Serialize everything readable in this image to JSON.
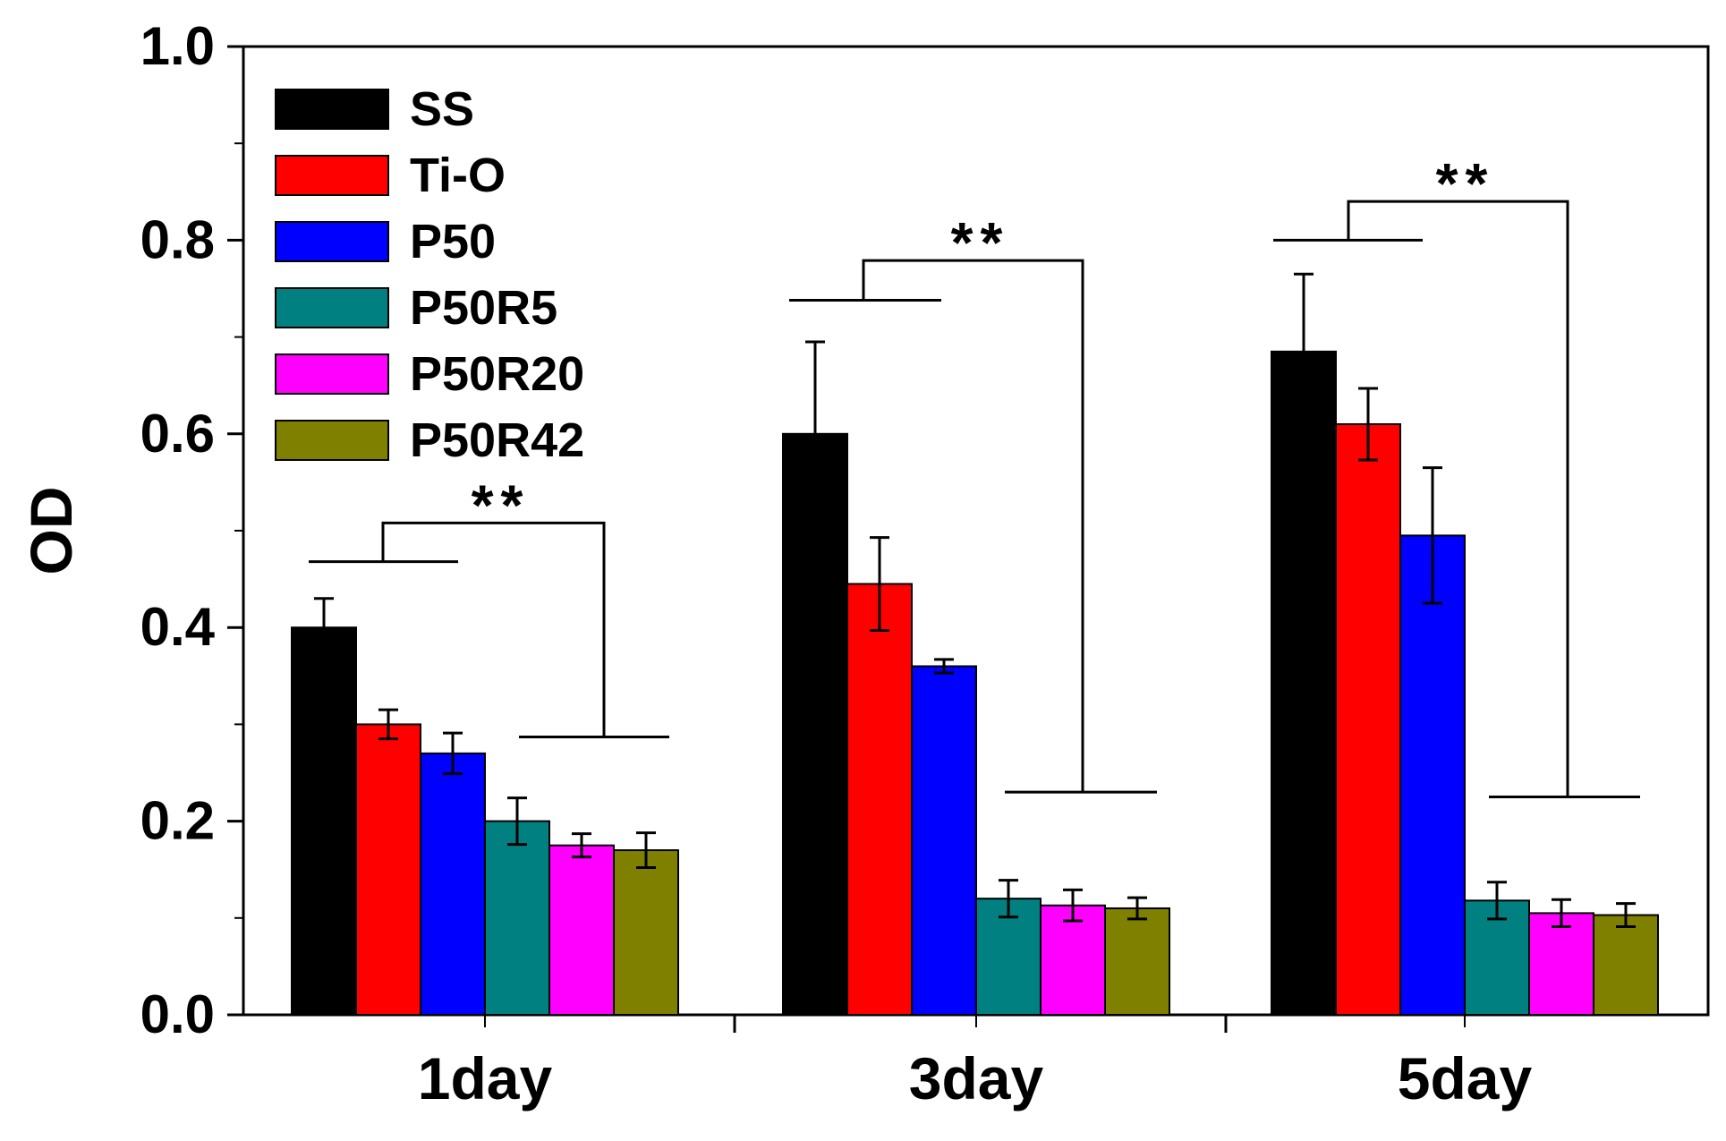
{
  "chart_data": {
    "type": "bar",
    "title": "",
    "xlabel": "",
    "ylabel": "OD",
    "ylim": [
      0,
      1.0
    ],
    "yticks": [
      "0.0",
      "0.2",
      "0.4",
      "0.6",
      "0.8",
      "1.0"
    ],
    "categories": [
      "1day",
      "3day",
      "5day"
    ],
    "legend_position": "top-left",
    "series": [
      {
        "name": "SS",
        "color": "#000000",
        "values": [
          0.4,
          0.6,
          0.685
        ],
        "errors": [
          0.03,
          0.095,
          0.08
        ]
      },
      {
        "name": "Ti-O",
        "color": "#ff0000",
        "values": [
          0.3,
          0.445,
          0.61
        ],
        "errors": [
          0.015,
          0.048,
          0.037
        ]
      },
      {
        "name": "P50",
        "color": "#0000ff",
        "values": [
          0.27,
          0.36,
          0.495
        ],
        "errors": [
          0.021,
          0.007,
          0.07
        ]
      },
      {
        "name": "P50R5",
        "color": "#008080",
        "values": [
          0.2,
          0.12,
          0.118
        ],
        "errors": [
          0.024,
          0.019,
          0.019
        ]
      },
      {
        "name": "P50R20",
        "color": "#ff00ff",
        "values": [
          0.175,
          0.113,
          0.105
        ],
        "errors": [
          0.012,
          0.016,
          0.014
        ]
      },
      {
        "name": "P50R42",
        "color": "#808000",
        "values": [
          0.17,
          0.11,
          0.103
        ],
        "errors": [
          0.018,
          0.011,
          0.012
        ]
      }
    ],
    "annotations": [
      {
        "group": "1day",
        "text": "**",
        "high_level": 0.468,
        "low_level": 0.287,
        "top_level": 0.508
      },
      {
        "group": "3day",
        "text": "**",
        "high_level": 0.738,
        "low_level": 0.23,
        "top_level": 0.779
      },
      {
        "group": "5day",
        "text": "**",
        "high_level": 0.8,
        "low_level": 0.225,
        "top_level": 0.84
      }
    ]
  }
}
